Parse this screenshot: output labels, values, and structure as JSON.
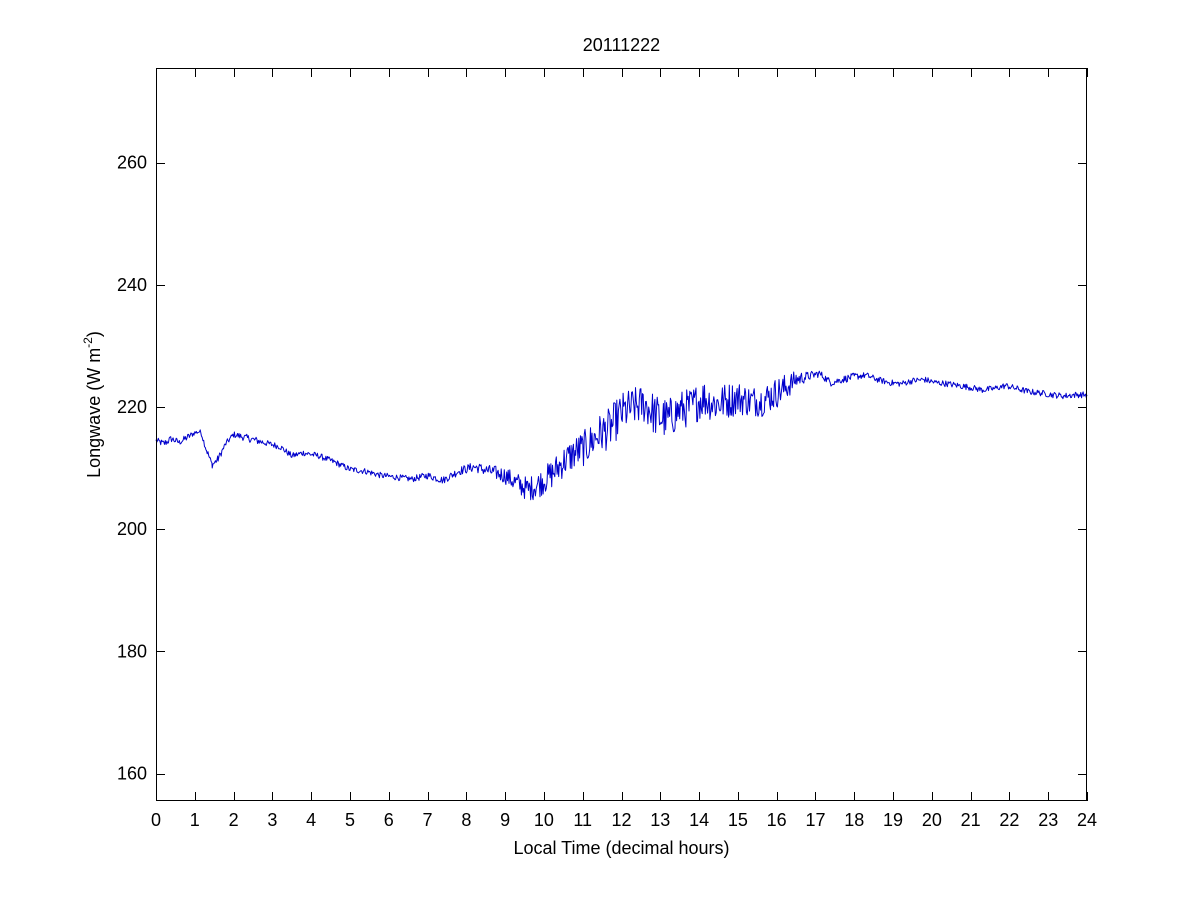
{
  "chart_data": {
    "type": "line",
    "title": "20111222",
    "xlabel": "Local Time (decimal hours)",
    "ylabel": {
      "main": "Longwave (W m",
      "sup": "-2",
      "close": ")"
    },
    "xlim": [
      0,
      24
    ],
    "ylim": [
      155.5,
      275.5
    ],
    "xticks": [
      0,
      1,
      2,
      3,
      4,
      5,
      6,
      7,
      8,
      9,
      10,
      11,
      12,
      13,
      14,
      15,
      16,
      17,
      18,
      19,
      20,
      21,
      22,
      23,
      24
    ],
    "yticks": [
      160,
      180,
      200,
      220,
      240,
      260
    ],
    "grid": false,
    "legend": "none",
    "series": [
      {
        "color": "#0000cc",
        "x": [
          0,
          0.2,
          0.4,
          0.6,
          0.8,
          1.0,
          1.15,
          1.3,
          1.45,
          1.6,
          1.8,
          2.0,
          2.3,
          2.6,
          2.9,
          3.2,
          3.5,
          3.8,
          4.2,
          4.6,
          5.0,
          5.4,
          5.8,
          6.2,
          6.6,
          7.0,
          7.4,
          7.8,
          8.2,
          8.6,
          9.0,
          9.3,
          9.6,
          9.9,
          10.2,
          10.5,
          10.8,
          11.1,
          11.4,
          11.7,
          12.0,
          12.3,
          12.6,
          12.9,
          13.2,
          13.5,
          13.8,
          14.1,
          14.4,
          14.7,
          15.0,
          15.3,
          15.6,
          15.9,
          16.2,
          16.5,
          16.8,
          17.1,
          17.4,
          17.7,
          18.0,
          18.3,
          18.6,
          18.9,
          19.2,
          19.5,
          19.8,
          20.1,
          20.4,
          20.7,
          21.0,
          21.3,
          21.6,
          21.9,
          22.2,
          22.5,
          22.8,
          23.1,
          23.4,
          23.7,
          24.0
        ],
        "y": [
          214.5,
          214.0,
          214.8,
          214.2,
          215.0,
          215.8,
          216.0,
          213.0,
          210.5,
          211.5,
          214.0,
          215.5,
          215.0,
          214.5,
          214.0,
          213.5,
          212.0,
          212.5,
          212.0,
          211.0,
          209.8,
          209.5,
          208.8,
          208.5,
          208.2,
          208.8,
          208.0,
          209.5,
          210.2,
          209.5,
          208.8,
          207.5,
          206.5,
          207.5,
          209.0,
          211.0,
          212.5,
          213.5,
          215.5,
          216.5,
          219.0,
          220.0,
          220.5,
          218.5,
          218.0,
          219.5,
          220.0,
          221.5,
          220.5,
          221.0,
          221.5,
          221.0,
          221.0,
          222.0,
          223.0,
          224.5,
          225.0,
          225.5,
          224.0,
          224.5,
          225.0,
          225.2,
          224.5,
          224.0,
          223.8,
          224.3,
          224.5,
          224.0,
          223.8,
          223.5,
          223.2,
          222.8,
          223.0,
          223.5,
          223.0,
          222.5,
          222.3,
          222.0,
          221.8,
          222.0,
          222.0
        ],
        "noise": [
          0.5,
          0.6,
          0.6,
          0.5,
          0.6,
          0.4,
          0.3,
          0.6,
          0.5,
          0.6,
          0.5,
          0.5,
          0.6,
          0.6,
          0.5,
          0.5,
          0.5,
          0.5,
          0.5,
          0.5,
          0.5,
          0.5,
          0.5,
          0.5,
          0.5,
          0.6,
          0.6,
          0.7,
          0.8,
          1.0,
          1.4,
          1.8,
          2.0,
          2.2,
          2.4,
          2.6,
          2.8,
          3.0,
          3.2,
          3.4,
          3.4,
          3.2,
          3.2,
          3.6,
          3.4,
          3.2,
          3.2,
          3.2,
          3.0,
          3.0,
          2.8,
          2.6,
          2.6,
          2.6,
          2.4,
          1.4,
          0.8,
          0.6,
          0.6,
          0.6,
          0.6,
          0.5,
          0.5,
          0.5,
          0.5,
          0.5,
          0.5,
          0.5,
          0.5,
          0.5,
          0.5,
          0.5,
          0.5,
          0.5,
          0.5,
          0.5,
          0.5,
          0.5,
          0.5,
          0.5,
          0.5
        ]
      }
    ]
  }
}
